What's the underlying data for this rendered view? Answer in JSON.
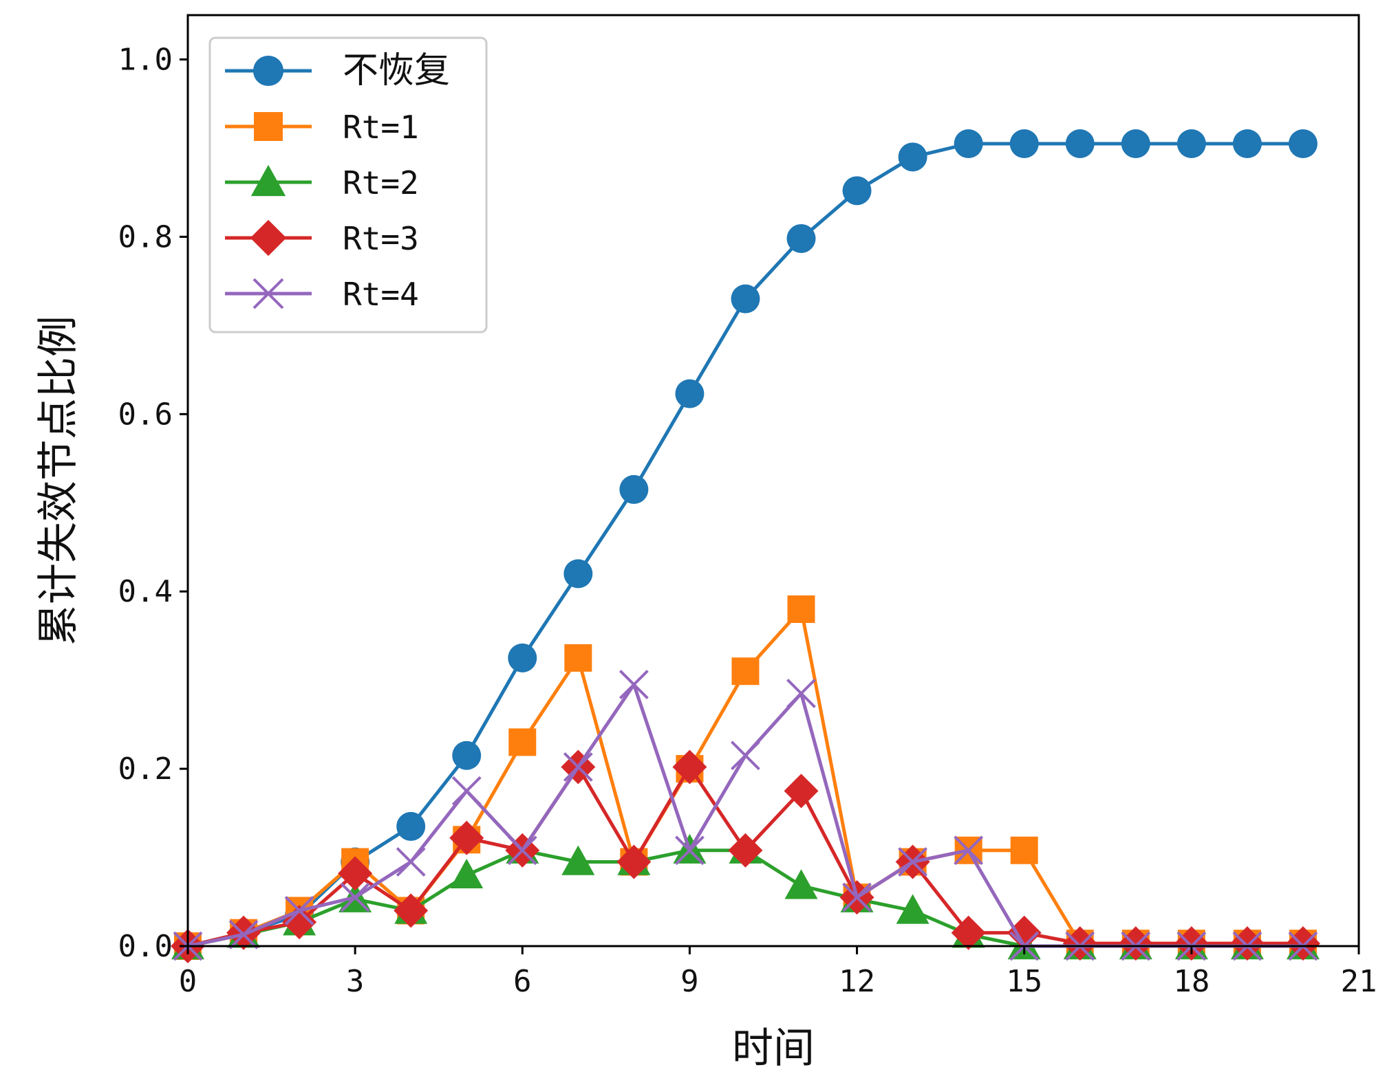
{
  "chart_data": {
    "type": "line",
    "title": "",
    "xlabel": "时间",
    "ylabel": "累计失效节点比例",
    "xlim": [
      0,
      21
    ],
    "ylim": [
      0,
      1.05
    ],
    "xticks": [
      0,
      3,
      6,
      9,
      12,
      15,
      18,
      21
    ],
    "yticks": [
      0.0,
      0.2,
      0.4,
      0.6,
      0.8,
      1.0
    ],
    "xtick_labels": [
      "0",
      "3",
      "6",
      "9",
      "12",
      "15",
      "18",
      "21"
    ],
    "ytick_labels": [
      "0.0",
      "0.2",
      "0.4",
      "0.6",
      "0.8",
      "1.0"
    ],
    "legend_position": "top-left",
    "x": [
      0,
      1,
      2,
      3,
      4,
      5,
      6,
      7,
      8,
      9,
      10,
      11,
      12,
      13,
      14,
      15,
      16,
      17,
      18,
      19,
      20
    ],
    "series": [
      {
        "name": "不恢复",
        "color": "#1f77b4",
        "marker": "circle",
        "values": [
          0.0,
          0.015,
          0.035,
          0.095,
          0.135,
          0.215,
          0.325,
          0.42,
          0.515,
          0.623,
          0.73,
          0.798,
          0.852,
          0.89,
          0.905,
          0.905,
          0.905,
          0.905,
          0.905,
          0.905,
          0.905
        ]
      },
      {
        "name": "Rt=1",
        "color": "#ff7f0e",
        "marker": "square",
        "values": [
          0.0,
          0.015,
          0.04,
          0.095,
          0.04,
          0.12,
          0.23,
          0.325,
          0.095,
          0.2,
          0.31,
          0.38,
          0.055,
          0.095,
          0.108,
          0.108,
          0.003,
          0.003,
          0.003,
          0.003,
          0.003
        ]
      },
      {
        "name": "Rt=2",
        "color": "#2ca02c",
        "marker": "triangle",
        "values": [
          0.0,
          0.013,
          0.027,
          0.053,
          0.04,
          0.08,
          0.108,
          0.095,
          0.095,
          0.108,
          0.108,
          0.068,
          0.053,
          0.04,
          0.013,
          0.0,
          0.0,
          0.0,
          0.0,
          0.0,
          0.0
        ]
      },
      {
        "name": "Rt=3",
        "color": "#d62728",
        "marker": "diamond",
        "values": [
          0.0,
          0.015,
          0.027,
          0.082,
          0.04,
          0.122,
          0.108,
          0.202,
          0.095,
          0.202,
          0.108,
          0.175,
          0.055,
          0.095,
          0.015,
          0.015,
          0.003,
          0.003,
          0.003,
          0.003,
          0.003
        ]
      },
      {
        "name": "Rt=4",
        "color": "#9467bd",
        "marker": "x",
        "values": [
          0.0,
          0.013,
          0.04,
          0.055,
          0.095,
          0.175,
          0.108,
          0.202,
          0.295,
          0.108,
          0.215,
          0.285,
          0.055,
          0.095,
          0.108,
          0.0,
          0.0,
          0.0,
          0.0,
          0.0,
          0.0
        ]
      }
    ]
  }
}
